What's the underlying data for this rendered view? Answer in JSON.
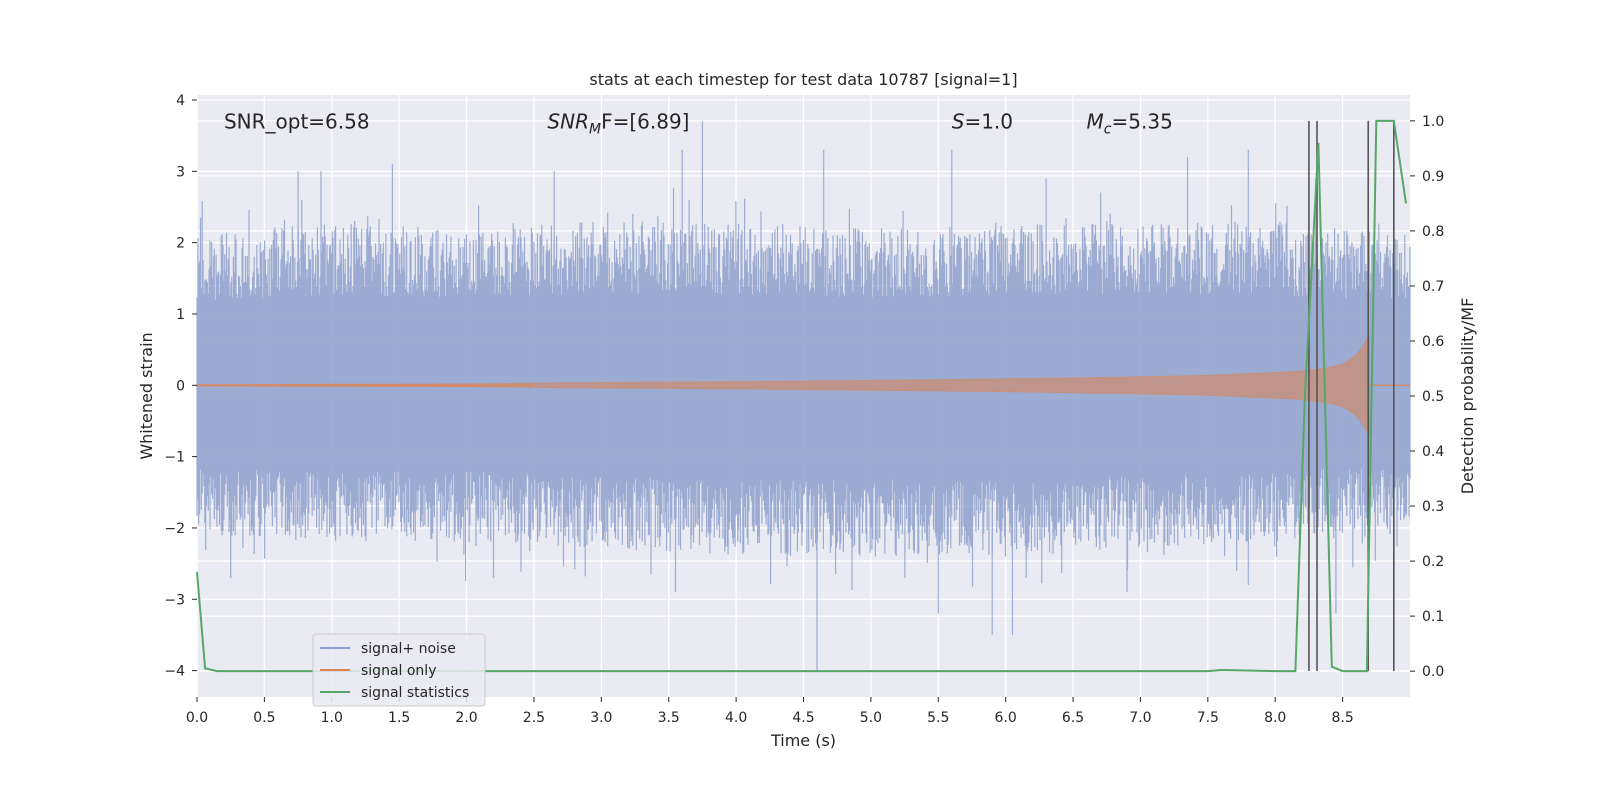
{
  "chart_data": {
    "type": "line",
    "title": "stats at each timestep for test data 10787 [signal=1]",
    "xlabel": "Time (s)",
    "ylabel_left": "Whitened strain",
    "ylabel_right": "Detection probability/MF",
    "xlim": [
      0.0,
      9.0
    ],
    "ylim_left": [
      -4.37,
      4.07
    ],
    "ylim_right": [
      -0.047,
      1.047
    ],
    "x_ticks": [
      "0.0",
      "0.5",
      "1.0",
      "1.5",
      "2.0",
      "2.5",
      "3.0",
      "3.5",
      "4.0",
      "4.5",
      "5.0",
      "5.5",
      "6.0",
      "6.5",
      "7.0",
      "7.5",
      "8.0",
      "8.5"
    ],
    "x_tick_values": [
      0,
      0.5,
      1,
      1.5,
      2,
      2.5,
      3,
      3.5,
      4,
      4.5,
      5,
      5.5,
      6,
      6.5,
      7,
      7.5,
      8,
      8.5
    ],
    "y_ticks_left": [
      "4",
      "3",
      "2",
      "1",
      "0",
      "−1",
      "−2",
      "−3",
      "−4"
    ],
    "y_tick_values_left": [
      4,
      3,
      2,
      1,
      0,
      -1,
      -2,
      -3,
      -4
    ],
    "y_ticks_right": [
      "1.0",
      "0.9",
      "0.8",
      "0.7",
      "0.6",
      "0.5",
      "0.4",
      "0.3",
      "0.2",
      "0.1",
      "0.0"
    ],
    "y_tick_values_right": [
      1.0,
      0.9,
      0.8,
      0.7,
      0.6,
      0.5,
      0.4,
      0.3,
      0.2,
      0.1,
      0.0
    ],
    "grid": true,
    "background": "#eaeaf2",
    "annotations": [
      {
        "text": "SNR_opt=6.58",
        "x": 0.2,
        "y": 3.7
      },
      {
        "text": "SNRMF=[6.89]",
        "base": "SNR",
        "sub": "M",
        "rest": "F=[6.89]",
        "x": 2.6,
        "y": 3.7
      },
      {
        "text": "S=1.0",
        "base": "S",
        "rest": "=1.0",
        "x": 5.6,
        "y": 3.7
      },
      {
        "text": "Mc=5.35",
        "base": "M",
        "sub": "c",
        "rest": "=5.35",
        "x": 6.6,
        "y": 3.7
      }
    ],
    "legend": {
      "placement": "lower-left",
      "entries": [
        {
          "label": "signal+ noise",
          "color": "#8da0cb"
        },
        {
          "label": "signal only",
          "color": "#dd8452"
        },
        {
          "label": "signal statistics",
          "color": "#55a868"
        }
      ]
    },
    "series": [
      {
        "name": "signal+ noise",
        "axis": "left",
        "color": "#8da0cb",
        "kind": "noise-band",
        "envelope_x": [
          0,
          1,
          2,
          3,
          4,
          5,
          6,
          7,
          8,
          8.5,
          9
        ],
        "envelope_upper": [
          2.1,
          2.3,
          2.2,
          2.3,
          2.3,
          2.2,
          2.3,
          2.3,
          2.3,
          2.2,
          2.2
        ],
        "envelope_lower": [
          -2.1,
          -2.2,
          -2.2,
          -2.3,
          -2.4,
          -2.4,
          -2.4,
          -2.3,
          -2.2,
          -2.1,
          -2.1
        ],
        "peak_x": [
          0.75,
          0.92,
          1.45,
          2.65,
          3.6,
          3.75,
          4.65,
          5.6,
          6.3,
          7.35,
          7.8,
          8.3
        ],
        "peak_y": [
          3.0,
          3.0,
          3.1,
          3.0,
          3.3,
          3.7,
          3.3,
          3.3,
          2.9,
          3.2,
          3.3,
          2.9
        ],
        "trough_x": [
          0.25,
          2.2,
          3.55,
          4.6,
          5.5,
          5.9,
          6.05,
          6.9,
          7.8,
          8.45
        ],
        "trough_y": [
          -2.7,
          -2.7,
          -2.9,
          -4.0,
          -3.2,
          -3.5,
          -3.5,
          -2.9,
          -2.8,
          -3.2
        ]
      },
      {
        "name": "signal only",
        "axis": "left",
        "color": "#dd8452",
        "kind": "chirp",
        "envelope_x": [
          0,
          1,
          2,
          2.5,
          3,
          4,
          5,
          6,
          7,
          7.5,
          8,
          8.2,
          8.4,
          8.5,
          8.6,
          8.65,
          8.7
        ],
        "envelope_amp": [
          0.01,
          0.015,
          0.02,
          0.03,
          0.04,
          0.05,
          0.07,
          0.09,
          0.12,
          0.14,
          0.18,
          0.2,
          0.25,
          0.3,
          0.42,
          0.55,
          0.7
        ],
        "end_x": 8.7
      },
      {
        "name": "signal statistics",
        "axis": "right",
        "color": "#55a868",
        "x": [
          0.0,
          0.06,
          0.15,
          1.0,
          2.0,
          3.0,
          4.0,
          5.0,
          6.0,
          7.0,
          7.5,
          7.6,
          8.0,
          8.15,
          8.22,
          8.32,
          8.42,
          8.5,
          8.68,
          8.75,
          8.85,
          8.88,
          8.97
        ],
        "y": [
          0.18,
          0.005,
          0.0,
          0.0,
          0.0,
          0.0,
          0.0,
          0.0,
          0.0,
          0.0,
          0.0,
          0.002,
          0.0,
          0.0,
          0.5,
          0.96,
          0.008,
          0.0,
          0.0,
          1.0,
          1.0,
          1.0,
          0.85
        ]
      }
    ],
    "vertical_lines": {
      "color": "#555555",
      "x": [
        8.25,
        8.31,
        8.69,
        8.88
      ],
      "y_range_right": [
        0.0,
        1.0
      ]
    }
  }
}
